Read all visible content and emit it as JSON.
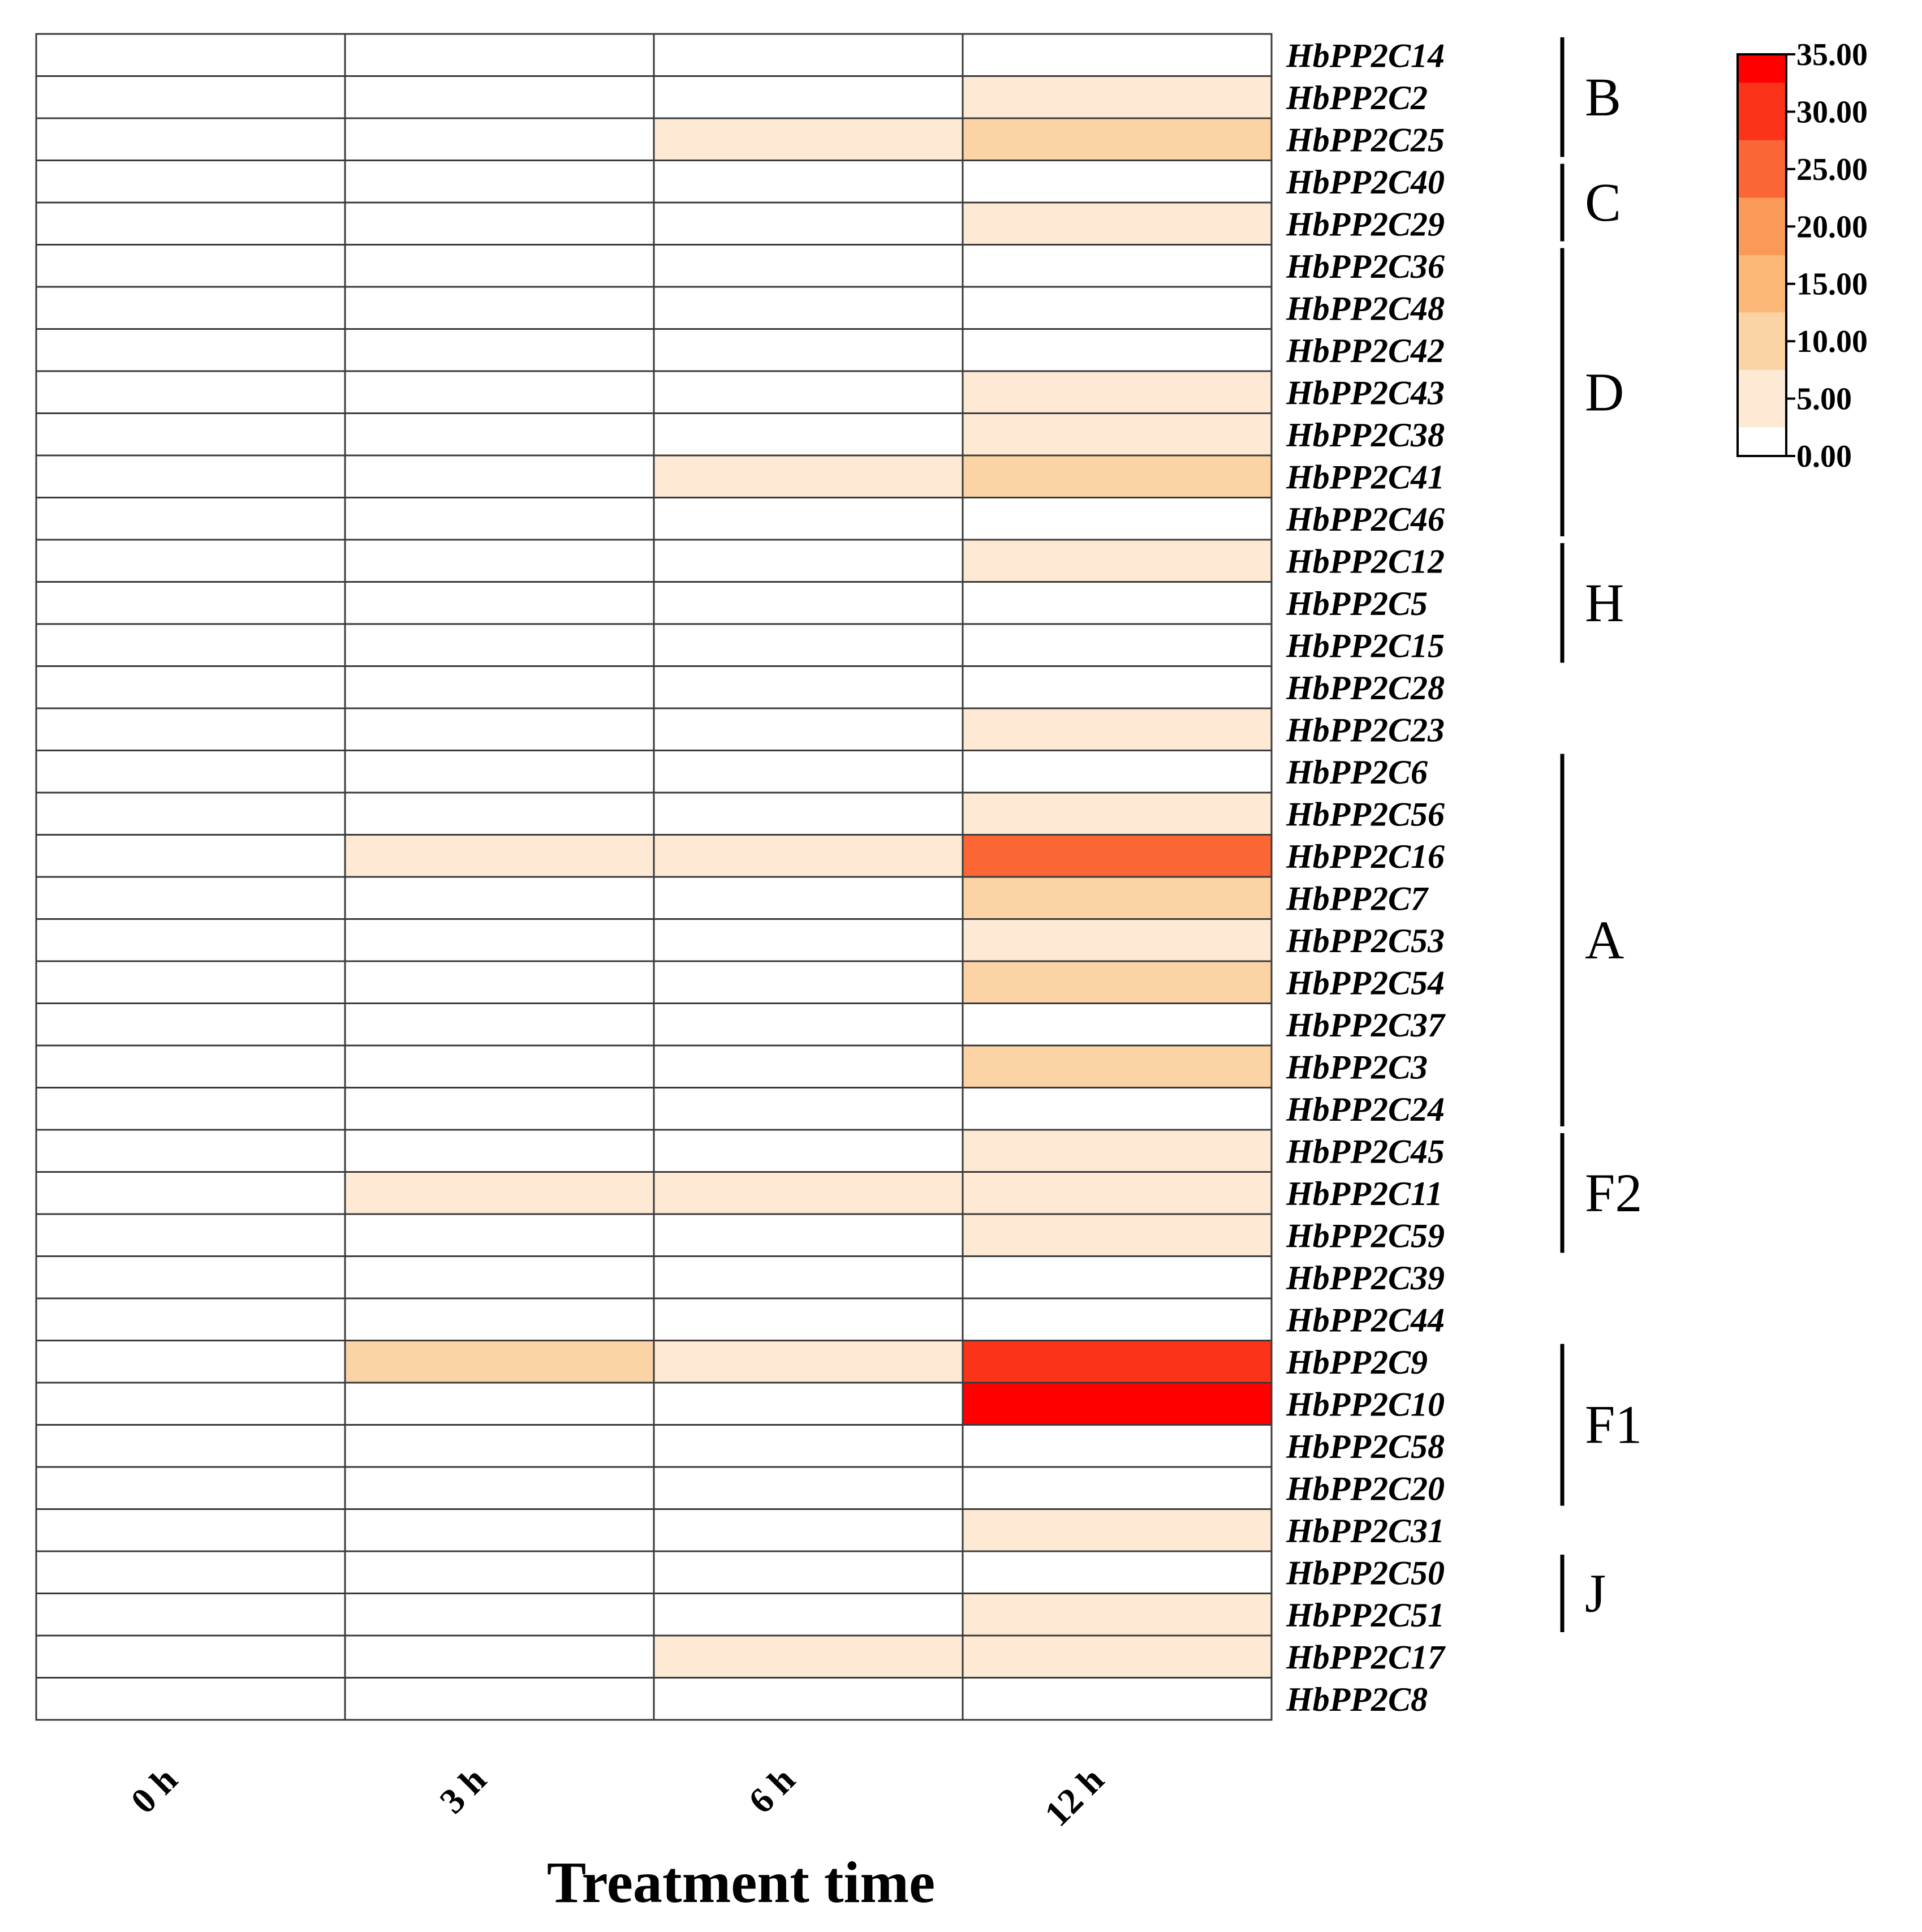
{
  "chart_data": {
    "type": "heatmap",
    "title": "",
    "xlabel": "Treatment time",
    "ylabel": "",
    "x_categories": [
      "0 h",
      "3 h",
      "6 h",
      "12 h"
    ],
    "genes": [
      "HbPP2C14",
      "HbPP2C2",
      "HbPP2C25",
      "HbPP2C40",
      "HbPP2C29",
      "HbPP2C36",
      "HbPP2C48",
      "HbPP2C42",
      "HbPP2C43",
      "HbPP2C38",
      "HbPP2C41",
      "HbPP2C46",
      "HbPP2C12",
      "HbPP2C5",
      "HbPP2C15",
      "HbPP2C28",
      "HbPP2C23",
      "HbPP2C6",
      "HbPP2C56",
      "HbPP2C16",
      "HbPP2C7",
      "HbPP2C53",
      "HbPP2C54",
      "HbPP2C37",
      "HbPP2C3",
      "HbPP2C24",
      "HbPP2C45",
      "HbPP2C11",
      "HbPP2C59",
      "HbPP2C39",
      "HbPP2C44",
      "HbPP2C9",
      "HbPP2C10",
      "HbPP2C58",
      "HbPP2C20",
      "HbPP2C31",
      "HbPP2C50",
      "HbPP2C51",
      "HbPP2C17",
      "HbPP2C8"
    ],
    "values": [
      [
        1,
        1,
        1,
        1
      ],
      [
        1,
        1,
        1,
        4
      ],
      [
        1,
        1,
        4,
        9
      ],
      [
        1,
        1,
        1,
        1
      ],
      [
        1,
        1,
        1,
        4
      ],
      [
        1,
        1,
        1,
        1
      ],
      [
        1,
        1,
        1,
        1
      ],
      [
        1,
        1,
        1,
        1
      ],
      [
        1,
        1,
        1,
        4
      ],
      [
        1,
        1,
        1,
        4
      ],
      [
        1,
        1,
        4,
        9
      ],
      [
        1,
        1,
        1,
        1
      ],
      [
        1,
        1,
        1,
        4
      ],
      [
        1,
        1,
        1,
        1
      ],
      [
        1,
        1,
        1,
        1
      ],
      [
        1,
        1,
        1,
        1
      ],
      [
        1,
        1,
        1,
        4
      ],
      [
        1,
        1,
        1,
        1
      ],
      [
        1,
        1,
        1,
        4
      ],
      [
        1,
        4,
        4,
        26
      ],
      [
        1,
        1,
        1,
        9
      ],
      [
        1,
        1,
        1,
        4
      ],
      [
        1,
        1,
        1,
        9
      ],
      [
        1,
        1,
        1,
        1
      ],
      [
        1,
        1,
        1,
        9
      ],
      [
        1,
        1,
        1,
        1
      ],
      [
        1,
        1,
        1,
        4
      ],
      [
        1,
        4,
        4,
        4
      ],
      [
        1,
        1,
        1,
        4
      ],
      [
        1,
        1,
        1,
        1
      ],
      [
        1,
        1,
        1,
        1
      ],
      [
        1,
        9,
        4,
        31
      ],
      [
        1,
        1,
        1,
        35
      ],
      [
        1,
        1,
        1,
        1
      ],
      [
        1,
        1,
        1,
        1
      ],
      [
        1,
        1,
        1,
        4
      ],
      [
        1,
        1,
        1,
        1
      ],
      [
        1,
        1,
        1,
        4
      ],
      [
        1,
        1,
        4,
        4
      ],
      [
        1,
        1,
        1,
        1
      ]
    ],
    "groups": [
      {
        "name": "B",
        "start": 0,
        "end": 2
      },
      {
        "name": "C",
        "start": 3,
        "end": 4
      },
      {
        "name": "D",
        "start": 5,
        "end": 11
      },
      {
        "name": "H",
        "start": 12,
        "end": 14
      },
      {
        "name": "A",
        "start": 17,
        "end": 25
      },
      {
        "name": "F2",
        "start": 26,
        "end": 28
      },
      {
        "name": "F1",
        "start": 31,
        "end": 34
      },
      {
        "name": "J",
        "start": 36,
        "end": 37
      }
    ],
    "legend": {
      "min": 0,
      "max": 35,
      "ticks": [
        "35.00",
        "30.00",
        "25.00",
        "20.00",
        "15.00",
        "10.00",
        "5.00",
        "0.00"
      ],
      "bins": [
        {
          "from": 0,
          "to": 2.5,
          "color": "#ffffff"
        },
        {
          "from": 2.5,
          "to": 7.5,
          "color": "#fde9d4"
        },
        {
          "from": 7.5,
          "to": 12.5,
          "color": "#fcd3a4"
        },
        {
          "from": 12.5,
          "to": 17.5,
          "color": "#fbb877"
        },
        {
          "from": 17.5,
          "to": 22.5,
          "color": "#fa9a58"
        },
        {
          "from": 22.5,
          "to": 27.5,
          "color": "#fb6634"
        },
        {
          "from": 27.5,
          "to": 32.5,
          "color": "#fb3318"
        },
        {
          "from": 32.5,
          "to": 35,
          "color": "#ff0000"
        }
      ],
      "placement": "top-right"
    },
    "grid": true,
    "colors": {
      "cell_border": "#3a3a3a",
      "text": "#000000"
    }
  }
}
